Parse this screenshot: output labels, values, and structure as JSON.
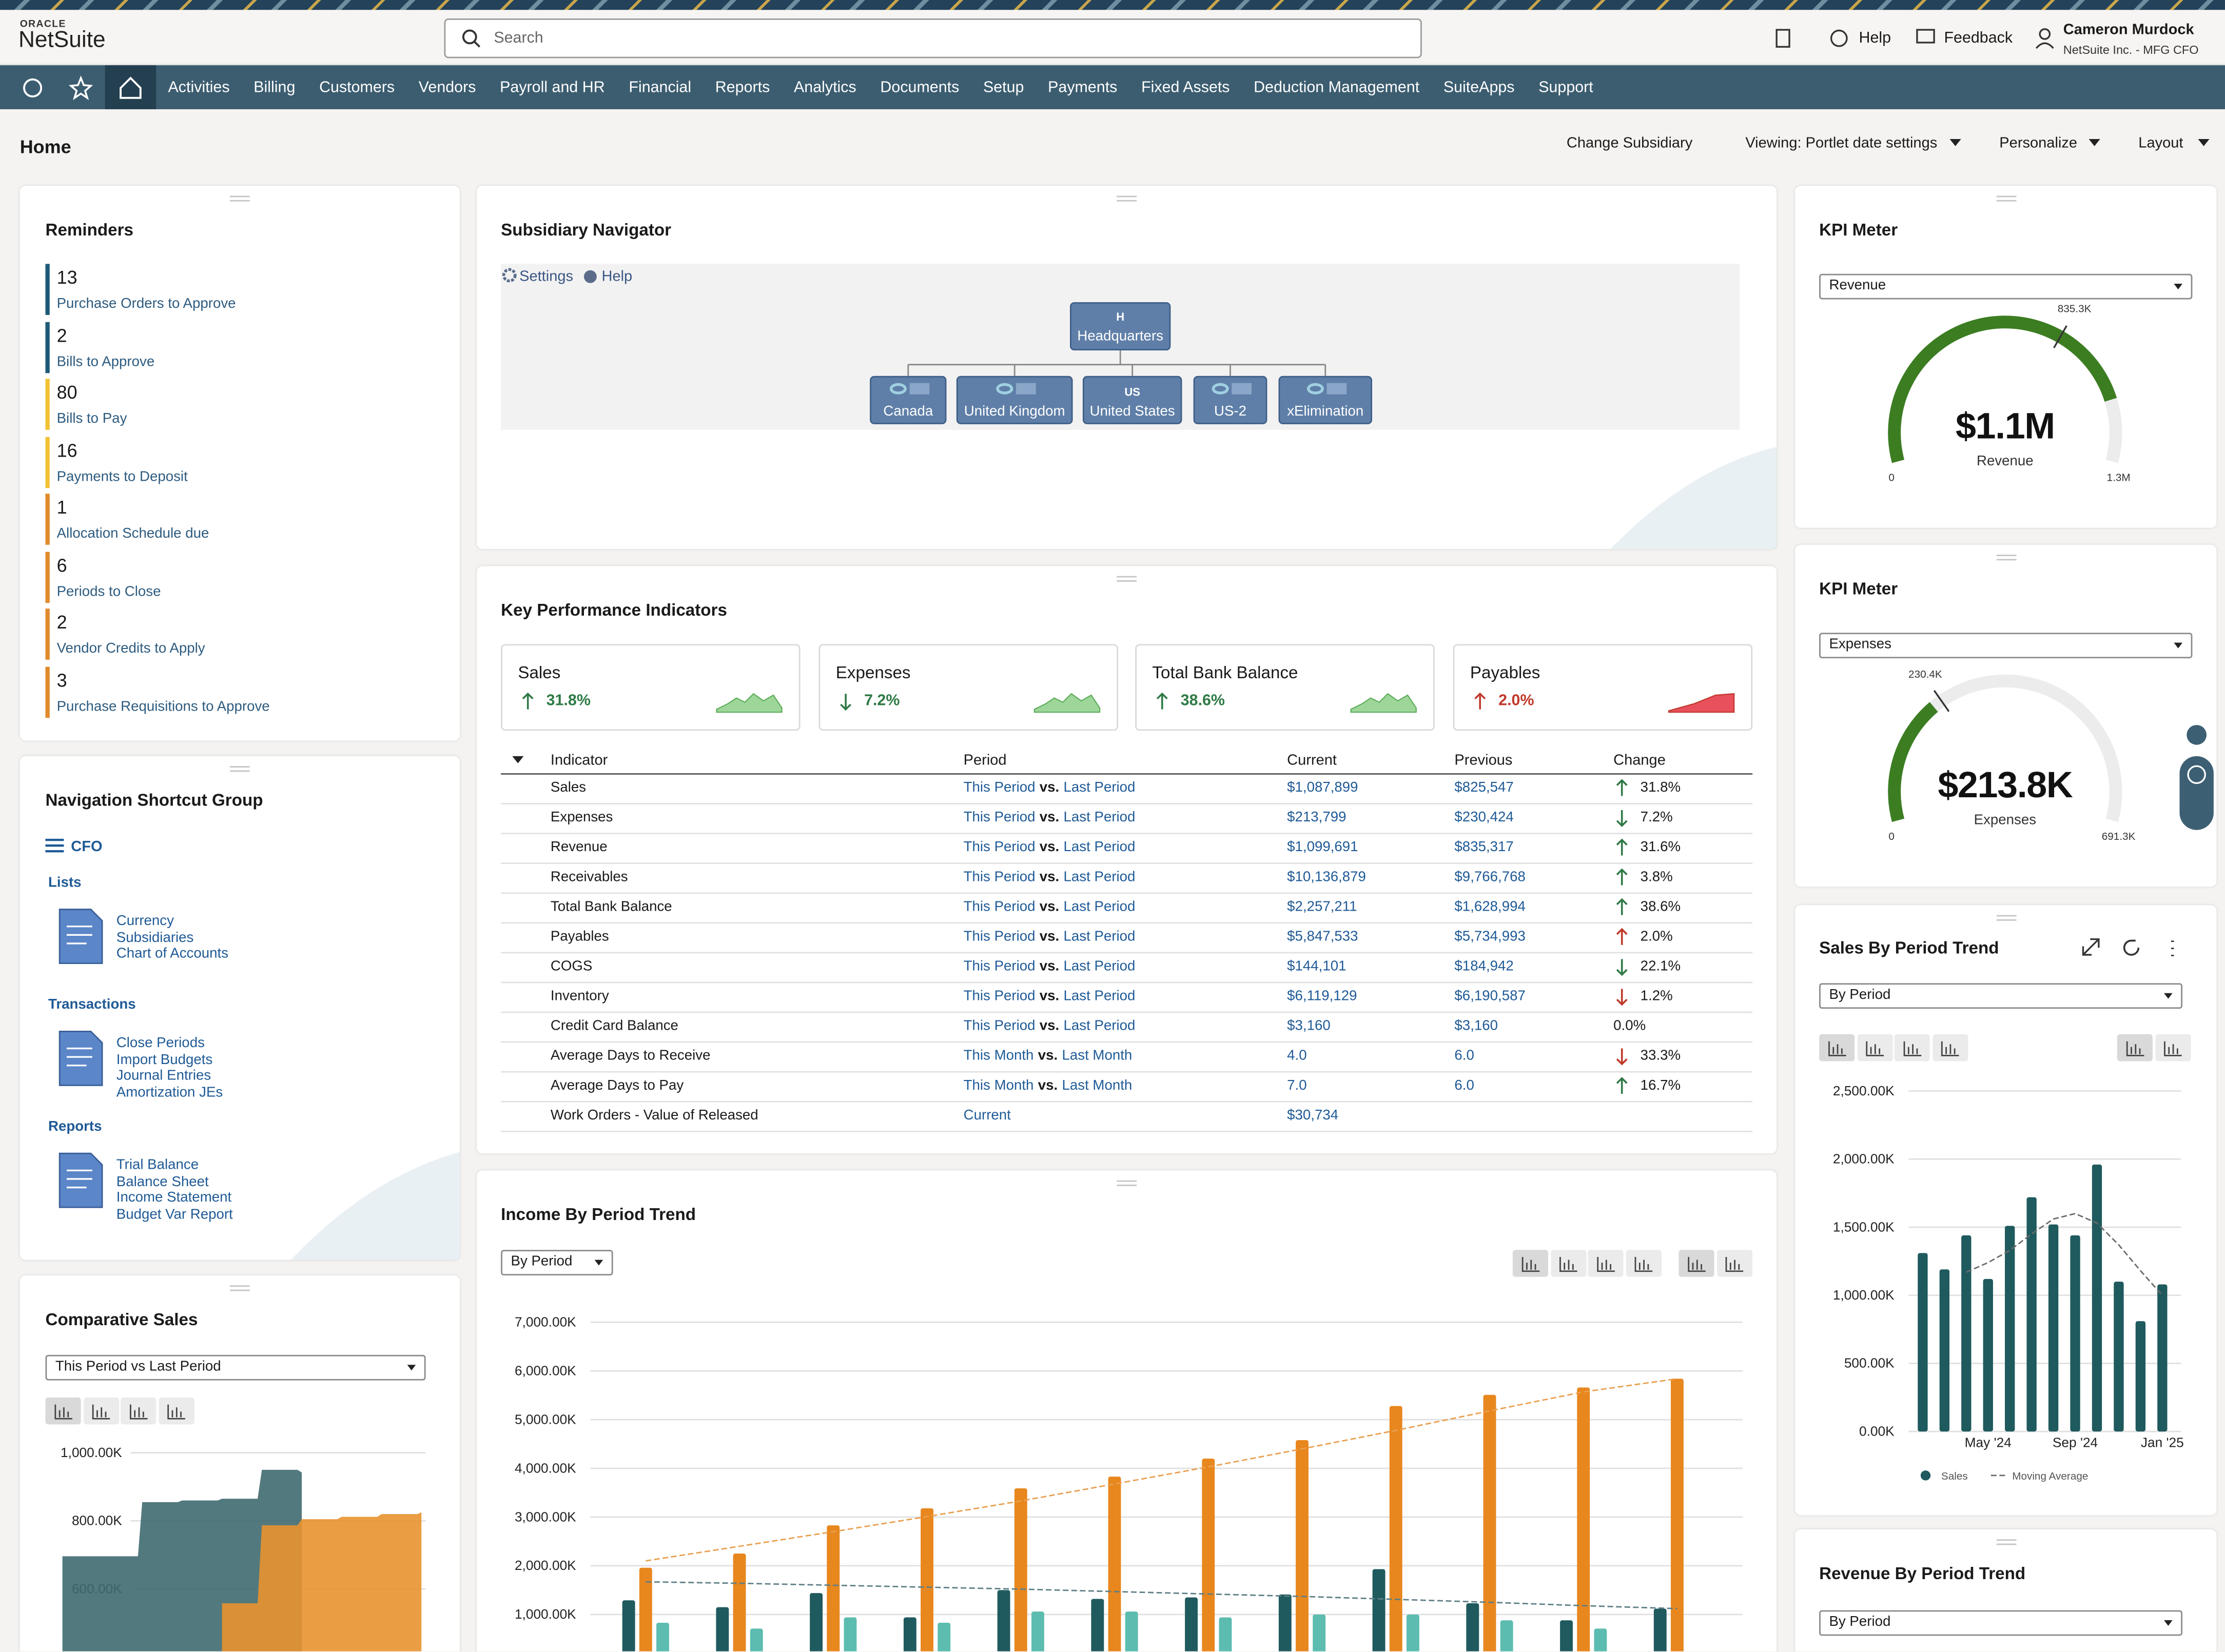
{
  "header": {
    "brand_top": "ORACLE",
    "brand": "NetSuite",
    "search": "Search",
    "help": "Help",
    "feedback": "Feedback",
    "user_name": "Cameron Murdock",
    "user_role": "NetSuite Inc. - MFG CFO"
  },
  "nav": [
    "Activities",
    "Billing",
    "Customers",
    "Vendors",
    "Payroll and HR",
    "Financial",
    "Reports",
    "Analytics",
    "Documents",
    "Setup",
    "Payments",
    "Fixed Assets",
    "Deduction Management",
    "SuiteApps",
    "Support"
  ],
  "page": {
    "title": "Home",
    "actions": [
      "Change Subsidiary",
      "Viewing: Portlet date settings",
      "Personalize",
      "Layout"
    ]
  },
  "reminders": {
    "title": "Reminders",
    "items": [
      {
        "count": 13,
        "label": "Purchase Orders to Approve",
        "color": "#1d5b78"
      },
      {
        "count": 2,
        "label": "Bills to Approve",
        "color": "#1d5b78"
      },
      {
        "count": 80,
        "label": "Bills to Pay",
        "color": "#f1c232"
      },
      {
        "count": 16,
        "label": "Payments to Deposit",
        "color": "#f1c232"
      },
      {
        "count": 1,
        "label": "Allocation Schedule due",
        "color": "#e08a2c"
      },
      {
        "count": 6,
        "label": "Periods to Close",
        "color": "#e08a2c"
      },
      {
        "count": 2,
        "label": "Vendor Credits to Apply",
        "color": "#e08a2c"
      },
      {
        "count": 3,
        "label": "Purchase Requisitions to Approve",
        "color": "#e08a2c"
      }
    ]
  },
  "shortcuts": {
    "title": "Navigation Shortcut Group",
    "group": "CFO",
    "sections": [
      {
        "title": "Lists",
        "links": [
          "Currency",
          "Subsidiaries",
          "Chart of Accounts"
        ]
      },
      {
        "title": "Transactions",
        "links": [
          "Close Periods",
          "Import Budgets",
          "Journal Entries",
          "Amortization JEs"
        ]
      },
      {
        "title": "Reports",
        "links": [
          "Trial Balance",
          "Balance Sheet",
          "Income Statement",
          "Budget Var Report"
        ]
      }
    ]
  },
  "comparative_sales": {
    "title": "Comparative Sales",
    "select": "This Period vs Last Period",
    "chart": {
      "type": "area",
      "ylim": [
        400,
        1000
      ],
      "yticks": [
        {
          "value": 600,
          "label": "600.00K"
        },
        {
          "value": 800,
          "label": "800.00K"
        },
        {
          "value": 1000,
          "label": "1,000.00K"
        }
      ],
      "grid": true,
      "series": [
        {
          "color": "#3f6a70",
          "values": [
            696,
            696,
            855,
            860,
            865,
            950,
            942,
            null,
            null,
            null
          ]
        },
        {
          "color": "#e8922f",
          "values": [
            null,
            null,
            null,
            null,
            558,
            787,
            805,
            812,
            820,
            825
          ]
        }
      ]
    }
  },
  "subsidiary_navigator": {
    "title": "Subsidiary Navigator",
    "settings": "Settings",
    "help": "Help",
    "root": {
      "code": "H",
      "label": "Headquarters"
    },
    "children": [
      {
        "label": "Canada"
      },
      {
        "label": "United Kingdom"
      },
      {
        "code": "US",
        "label": "United States"
      },
      {
        "label": "US-2"
      },
      {
        "label": "xElimination"
      }
    ]
  },
  "kpi": {
    "title": "Key Performance Indicators",
    "cards": [
      {
        "name": "Sales",
        "change": "31.8%",
        "arrow": "up",
        "color": "#2f7a46"
      },
      {
        "name": "Expenses",
        "change": "7.2%",
        "arrow": "down",
        "color": "#2f7a46"
      },
      {
        "name": "Total Bank Balance",
        "change": "38.6%",
        "arrow": "up",
        "color": "#2f7a46"
      },
      {
        "name": "Payables",
        "change": "2.0%",
        "arrow": "up",
        "color": "#c0392b"
      }
    ],
    "columns": [
      "Indicator",
      "Period",
      "Current",
      "Previous",
      "Change"
    ],
    "rows": [
      {
        "indicator": "Sales",
        "period": [
          "This Period",
          "vs.",
          "Last Period"
        ],
        "current": "$1,087,899",
        "previous": "$825,547",
        "change": "31.8%",
        "arrow": "up",
        "arrow_color": "#2f7a46"
      },
      {
        "indicator": "Expenses",
        "period": [
          "This Period",
          "vs.",
          "Last Period"
        ],
        "current": "$213,799",
        "previous": "$230,424",
        "change": "7.2%",
        "arrow": "down",
        "arrow_color": "#2f7a46"
      },
      {
        "indicator": "Revenue",
        "period": [
          "This Period",
          "vs.",
          "Last Period"
        ],
        "current": "$1,099,691",
        "previous": "$835,317",
        "change": "31.6%",
        "arrow": "up",
        "arrow_color": "#2f7a46"
      },
      {
        "indicator": "Receivables",
        "period": [
          "This Period",
          "vs.",
          "Last Period"
        ],
        "current": "$10,136,879",
        "previous": "$9,766,768",
        "change": "3.8%",
        "arrow": "up",
        "arrow_color": "#2f7a46"
      },
      {
        "indicator": "Total Bank Balance",
        "period": [
          "This Period",
          "vs.",
          "Last Period"
        ],
        "current": "$2,257,211",
        "previous": "$1,628,994",
        "change": "38.6%",
        "arrow": "up",
        "arrow_color": "#2f7a46"
      },
      {
        "indicator": "Payables",
        "period": [
          "This Period",
          "vs.",
          "Last Period"
        ],
        "current": "$5,847,533",
        "previous": "$5,734,993",
        "change": "2.0%",
        "arrow": "up",
        "arrow_color": "#c0392b"
      },
      {
        "indicator": "COGS",
        "period": [
          "This Period",
          "vs.",
          "Last Period"
        ],
        "current": "$144,101",
        "previous": "$184,942",
        "change": "22.1%",
        "arrow": "down",
        "arrow_color": "#2f7a46"
      },
      {
        "indicator": "Inventory",
        "period": [
          "This Period",
          "vs.",
          "Last Period"
        ],
        "current": "$6,119,129",
        "previous": "$6,190,587",
        "change": "1.2%",
        "arrow": "down",
        "arrow_color": "#c0392b"
      },
      {
        "indicator": "Credit Card Balance",
        "period": [
          "This Period",
          "vs.",
          "Last Period"
        ],
        "current": "$3,160",
        "previous": "$3,160",
        "change": "0.0%"
      },
      {
        "indicator": "Average Days to Receive",
        "period": [
          "This Month",
          "vs.",
          "Last Month"
        ],
        "current": "4.0",
        "previous": "6.0",
        "change": "33.3%",
        "arrow": "down",
        "arrow_color": "#c0392b"
      },
      {
        "indicator": "Average Days to Pay",
        "period": [
          "This Month",
          "vs.",
          "Last Month"
        ],
        "current": "7.0",
        "previous": "6.0",
        "change": "16.7%",
        "arrow": "up",
        "arrow_color": "#2f7a46"
      },
      {
        "indicator": "Work Orders - Value of Released",
        "period": [
          "Current"
        ],
        "current": "$30,734"
      }
    ]
  },
  "income_trend": {
    "title": "Income By Period Trend",
    "select": "By Period",
    "chart": {
      "type": "bar",
      "ylim": [
        0,
        7000
      ],
      "grid": true,
      "yticks": [
        {
          "value": 1000,
          "label": "1,000.00K"
        },
        {
          "value": 2000,
          "label": "2,000.00K"
        },
        {
          "value": 3000,
          "label": "3,000.00K"
        },
        {
          "value": 4000,
          "label": "4,000.00K"
        },
        {
          "value": 5000,
          "label": "5,000.00K"
        },
        {
          "value": 6000,
          "label": "6,000.00K"
        },
        {
          "value": 7000,
          "label": "7,000.00K"
        }
      ],
      "series": [
        {
          "color": "#1f5a5e",
          "values": [
            1290,
            1150,
            1440,
            940,
            1500,
            1320,
            1350,
            1410,
            1930,
            1230,
            880,
            1120
          ]
        },
        {
          "color": "#e8871e",
          "values": [
            1960,
            2250,
            2830,
            3180,
            3590,
            3830,
            4200,
            4580,
            5280,
            5510,
            5660,
            5840
          ]
        },
        {
          "color": "#5cbcb0",
          "values": [
            830,
            710,
            940,
            830,
            1060,
            1060,
            940,
            1000,
            1000,
            880,
            710,
            null
          ]
        },
        {
          "color": "#e8a050",
          "mark": "line",
          "dash": true,
          "values": [
            2100,
            2400,
            2700,
            3010,
            3330,
            3680,
            4030,
            4400,
            4780,
            5180,
            5570,
            5840
          ]
        },
        {
          "color": "#5e7f86",
          "mark": "line",
          "dash": true,
          "values": [
            1670,
            1640,
            1600,
            1560,
            1520,
            1470,
            1420,
            1370,
            1310,
            1250,
            1180,
            1120
          ]
        }
      ]
    }
  },
  "kpi_meters": [
    {
      "title": "KPI Meter",
      "select": "Revenue",
      "value": 1100,
      "value_label": "$1.1M",
      "label": "Revenue",
      "min": 0,
      "max": {
        "value": 1300,
        "label": "1.3M"
      },
      "target": {
        "value": 835.3,
        "label": "835.3K"
      },
      "color": "#3c7d22"
    },
    {
      "title": "KPI Meter",
      "select": "Expenses",
      "value": 213.8,
      "value_label": "$213.8K",
      "label": "Expenses",
      "min": 0,
      "max": {
        "value": 691.3,
        "label": "691.3K"
      },
      "target": {
        "value": 230.4,
        "label": "230.4K"
      },
      "color": "#3c7d22"
    }
  ],
  "sales_trend": {
    "title": "Sales By Period Trend",
    "select": "By Period",
    "chart": {
      "type": "bar",
      "ylim": [
        0,
        2500
      ],
      "grid": true,
      "yticks": [
        {
          "value": 0,
          "label": "0.00K"
        },
        {
          "value": 500,
          "label": "500.00K"
        },
        {
          "value": 1000,
          "label": "1,000.00K"
        },
        {
          "value": 1500,
          "label": "1,500.00K"
        },
        {
          "value": 2000,
          "label": "2,000.00K"
        },
        {
          "value": 2500,
          "label": "2,500.00K"
        }
      ],
      "categories": [
        null,
        null,
        null,
        "May '24",
        null,
        null,
        null,
        "Sep '24",
        null,
        null,
        null,
        "Jan '25"
      ],
      "series": [
        {
          "name": "Sales",
          "color": "#1f5a5e",
          "values": [
            1310,
            1190,
            1440,
            1120,
            1510,
            1720,
            1520,
            1440,
            1960,
            1100,
            810,
            1080
          ]
        },
        {
          "name": "Moving Average",
          "color": "#6b6b6b",
          "mark": "line",
          "dash": true,
          "values": [
            null,
            null,
            1170,
            1240,
            1330,
            1450,
            1560,
            1600,
            1530,
            1370,
            1180,
            1000
          ]
        }
      ]
    }
  },
  "revenue_trend": {
    "title": "Revenue By Period Trend",
    "select": "By Period"
  }
}
